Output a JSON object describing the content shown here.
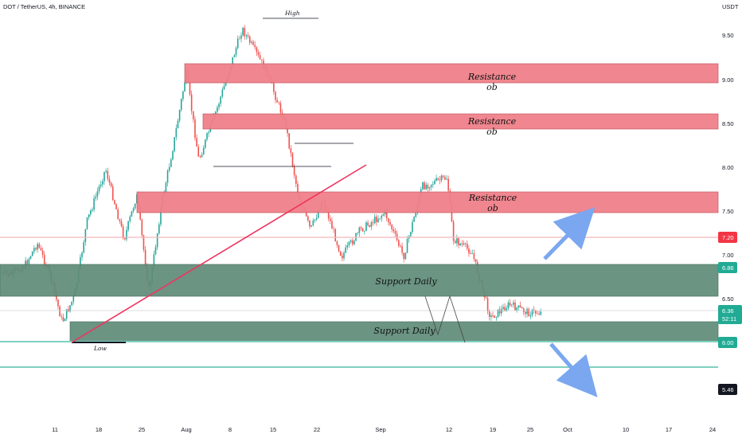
{
  "header": {
    "title": "DOT / TetherUS, 4h, BINANCE",
    "currency": "USDT"
  },
  "annotations": {
    "high": "High",
    "low": "Low",
    "resistance": "Resistance",
    "ob": "ob",
    "support": "Support Daily"
  },
  "price_tags": {
    "level_720": "7.20",
    "level_686": "6.86",
    "current_price": "6.36",
    "countdown": "52:11",
    "level_600": "6.00",
    "level_546": "5.46"
  },
  "colors": {
    "resistance_zone": "#f0808a",
    "support_zone": "#5f8c78",
    "trendline": "#f0345f",
    "arrow": "#7aa7f0",
    "bull_candle": "#26a69a",
    "bear_candle": "#ef5350",
    "tag_red": "#f23645",
    "tag_green": "#22ab94",
    "level_line": "#7fd1c0"
  },
  "chart_data": {
    "type": "candlestick",
    "symbol": "DOT / TetherUS",
    "timeframe": "4h",
    "exchange": "BINANCE",
    "y_ticks": [
      "9.50",
      "9.00",
      "8.50",
      "8.00",
      "7.50",
      "7.00",
      "6.50"
    ],
    "x_ticks": [
      "11",
      "18",
      "25",
      "Aug",
      "8",
      "15",
      "22",
      "Sep",
      "12",
      "19",
      "25",
      "Oct",
      "10",
      "17",
      "24"
    ],
    "ylim": [
      5.15,
      9.9
    ],
    "price_path": [
      {
        "date": "Jul 4",
        "price": 6.8
      },
      {
        "date": "Jul 6",
        "price": 6.9
      },
      {
        "date": "Jul 8",
        "price": 7.15
      },
      {
        "date": "Jul 10",
        "price": 6.8
      },
      {
        "date": "Jul 12",
        "price": 6.25
      },
      {
        "date": "Jul 14",
        "price": 6.55
      },
      {
        "date": "Jul 16",
        "price": 7.4
      },
      {
        "date": "Jul 19",
        "price": 8.0
      },
      {
        "date": "Jul 22",
        "price": 7.2
      },
      {
        "date": "Jul 24",
        "price": 7.7
      },
      {
        "date": "Jul 26",
        "price": 6.6
      },
      {
        "date": "Jul 28",
        "price": 7.6
      },
      {
        "date": "Jul 30",
        "price": 8.3
      },
      {
        "date": "Aug 1",
        "price": 9.1
      },
      {
        "date": "Aug 3",
        "price": 8.1
      },
      {
        "date": "Aug 6",
        "price": 8.7
      },
      {
        "date": "Aug 10",
        "price": 9.6
      },
      {
        "date": "Aug 14",
        "price": 9.1
      },
      {
        "date": "Aug 17",
        "price": 8.5
      },
      {
        "date": "Aug 19",
        "price": 7.7
      },
      {
        "date": "Aug 21",
        "price": 7.3
      },
      {
        "date": "Aug 23",
        "price": 7.65
      },
      {
        "date": "Aug 26",
        "price": 7.0
      },
      {
        "date": "Aug 29",
        "price": 7.3
      },
      {
        "date": "Sep 2",
        "price": 7.5
      },
      {
        "date": "Sep 5",
        "price": 7.0
      },
      {
        "date": "Sep 8",
        "price": 7.8
      },
      {
        "date": "Sep 12",
        "price": 7.9
      },
      {
        "date": "Sep 13",
        "price": 7.2
      },
      {
        "date": "Sep 16",
        "price": 7.05
      },
      {
        "date": "Sep 19",
        "price": 6.3
      },
      {
        "date": "Sep 22",
        "price": 6.45
      },
      {
        "date": "Sep 25",
        "price": 6.36
      }
    ],
    "zones": [
      {
        "type": "resistance",
        "labels": [
          "Resistance",
          "ob"
        ],
        "range": [
          8.95,
          9.2
        ]
      },
      {
        "type": "resistance",
        "labels": [
          "Resistance",
          "ob"
        ],
        "range": [
          8.42,
          8.58
        ]
      },
      {
        "type": "resistance",
        "labels": [
          "Resistance",
          "ob"
        ],
        "range": [
          7.47,
          7.72
        ]
      },
      {
        "type": "support",
        "label": "Support Daily",
        "range": [
          6.52,
          6.86
        ]
      },
      {
        "type": "support",
        "label": "Support Daily",
        "range": [
          6.0,
          6.22
        ]
      }
    ],
    "levels": [
      7.2,
      6.86,
      6.36,
      6.0,
      5.46
    ],
    "markers": {
      "high": 9.62,
      "low": 6.0
    },
    "current_price": 6.36
  }
}
